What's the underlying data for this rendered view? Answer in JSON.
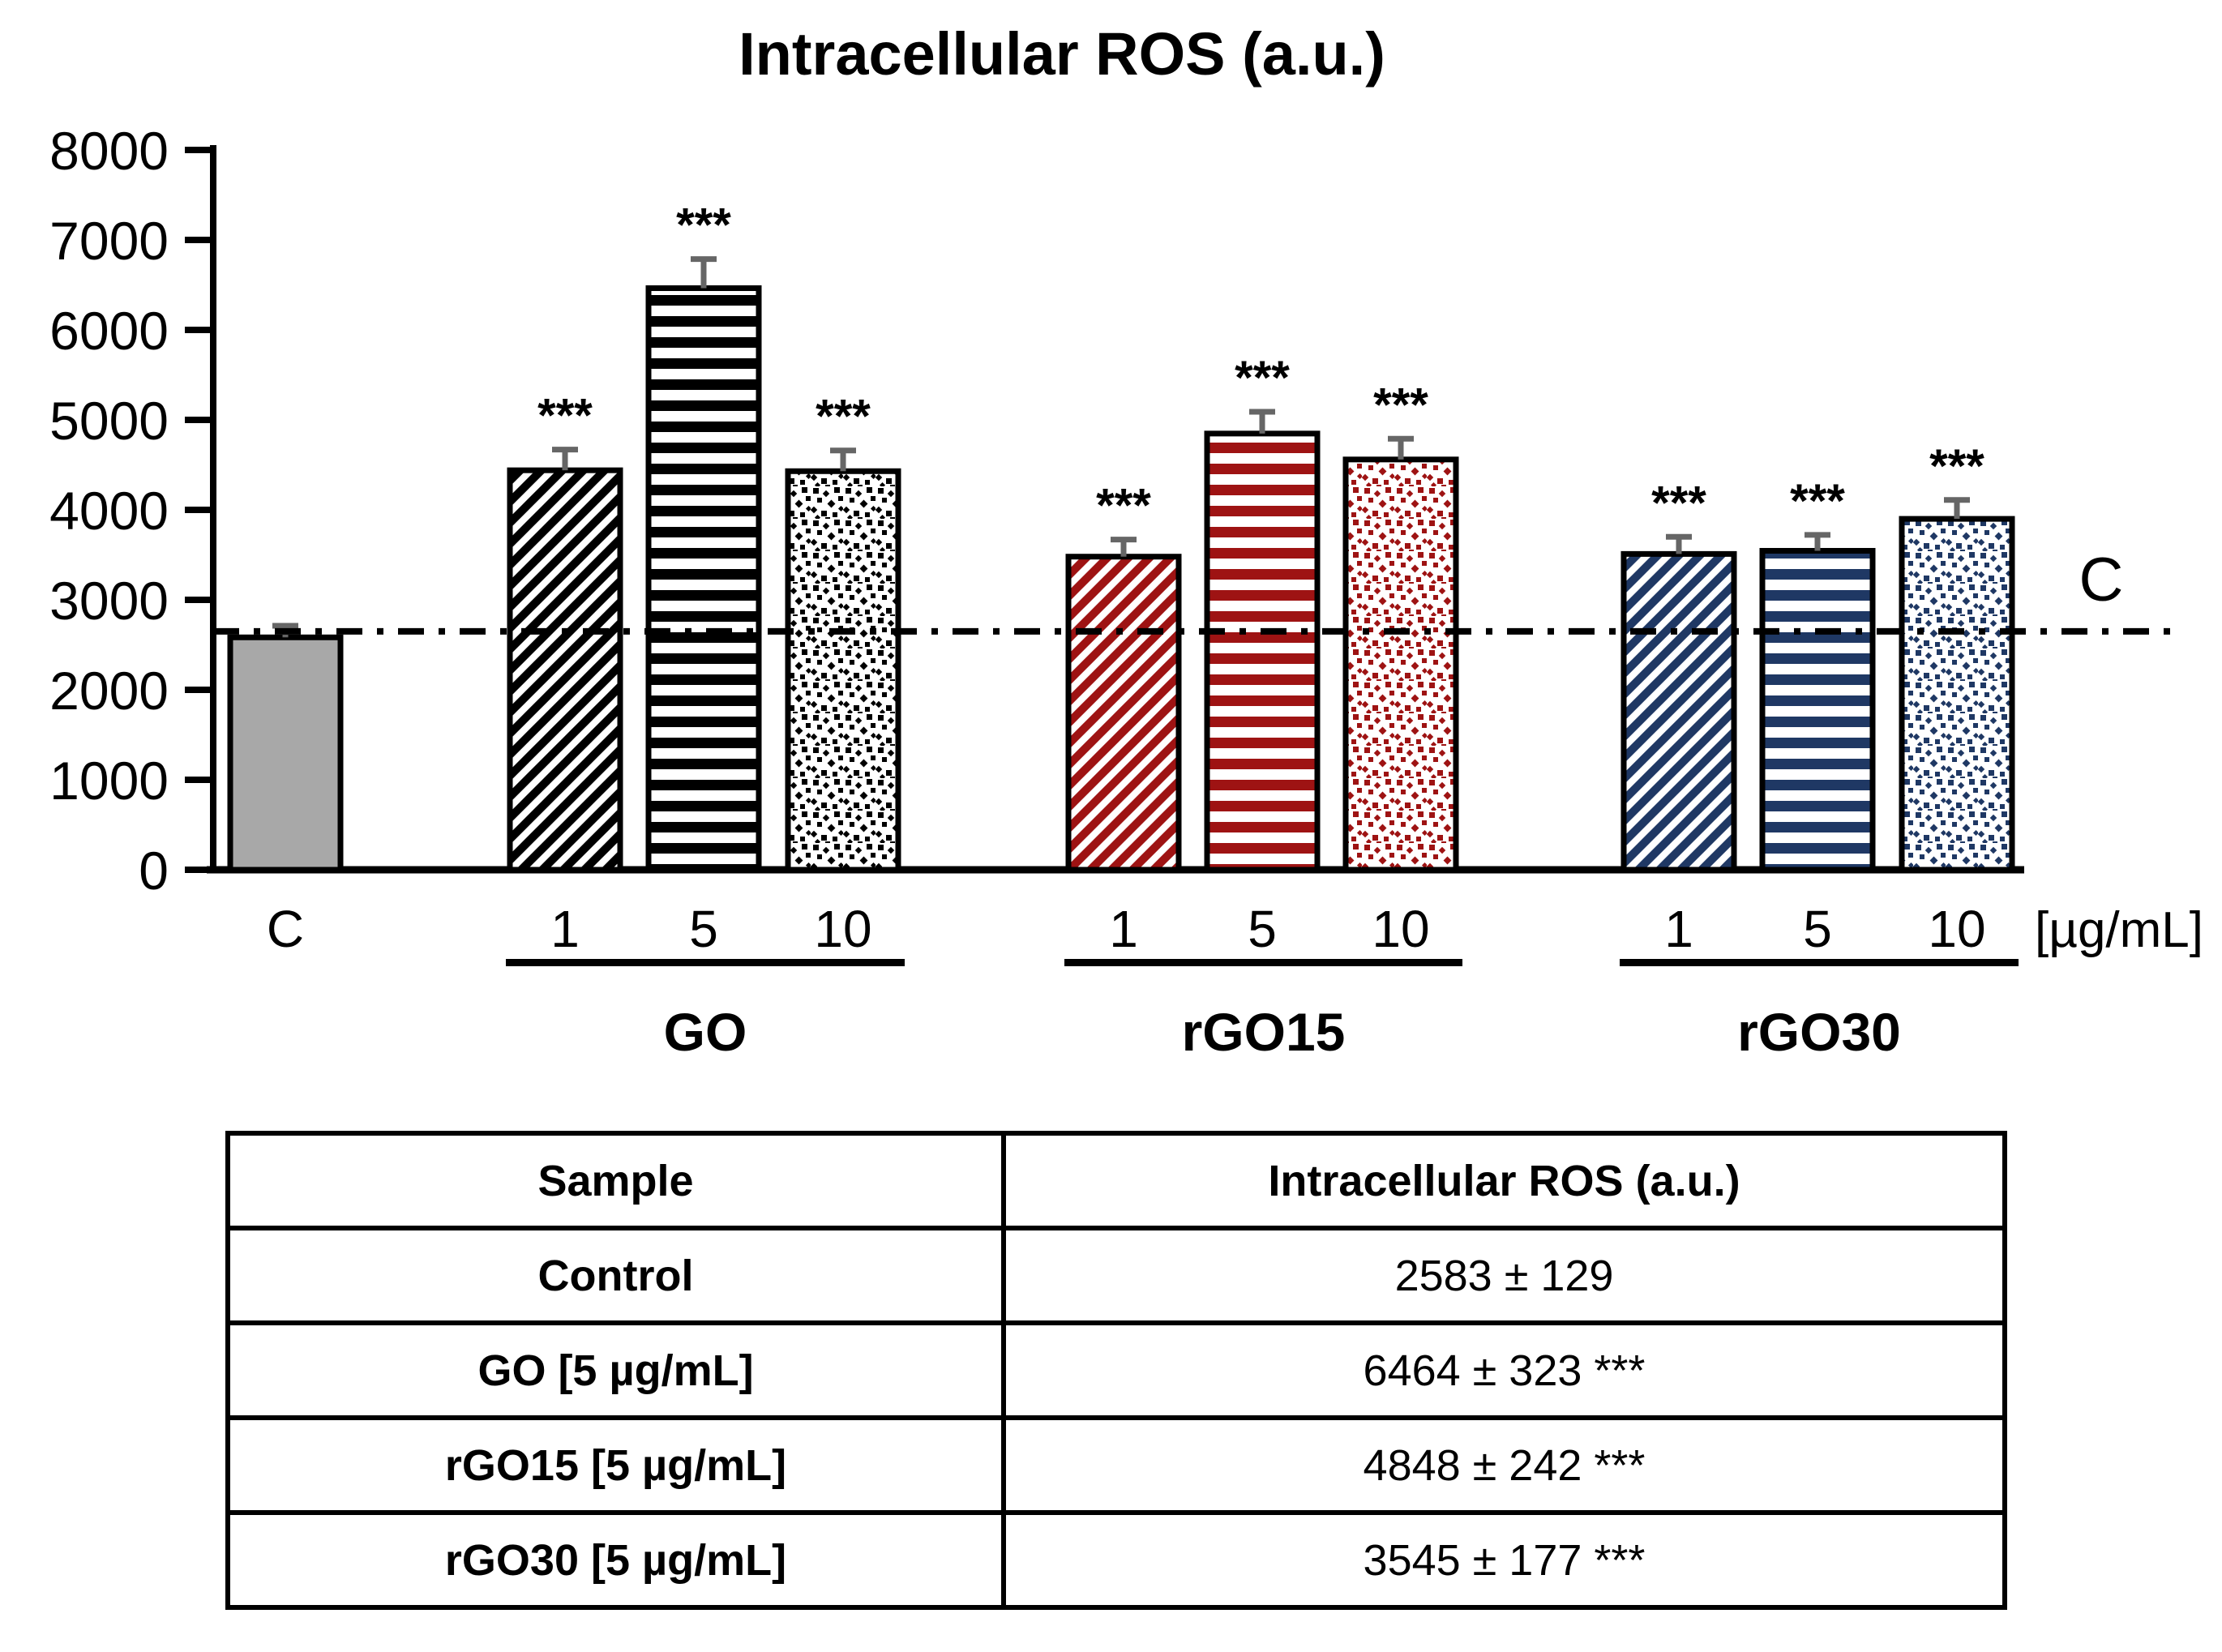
{
  "page": {
    "background": "#ffffff"
  },
  "chart_data": {
    "type": "bar",
    "title": "Intracellular ROS (a.u.)",
    "xlabel": "",
    "ylabel": "",
    "unit_label": "[µg/mL]",
    "ylim": [
      0,
      8000
    ],
    "yticks": [
      0,
      1000,
      2000,
      3000,
      4000,
      5000,
      6000,
      7000,
      8000
    ],
    "grid": false,
    "legend_position": "none",
    "reference_line": {
      "label": "C",
      "value": 2650,
      "style": "dash-dot",
      "color": "#000000"
    },
    "error_bar_color": "#666666",
    "bars": [
      {
        "group": "",
        "label": "C",
        "value": 2583,
        "error": 129,
        "sig": "",
        "color": "#a8a8a8",
        "pattern": "solid"
      },
      {
        "group": "GO",
        "label": "1",
        "value": 4440,
        "error": 230,
        "sig": "***",
        "color": "#000000",
        "pattern": "diagonal"
      },
      {
        "group": "GO",
        "label": "5",
        "value": 6464,
        "error": 323,
        "sig": "***",
        "color": "#000000",
        "pattern": "hstripes"
      },
      {
        "group": "GO",
        "label": "10",
        "value": 4430,
        "error": 230,
        "sig": "***",
        "color": "#000000",
        "pattern": "dots"
      },
      {
        "group": "rGO15",
        "label": "1",
        "value": 3480,
        "error": 190,
        "sig": "***",
        "color": "#9e1313",
        "pattern": "diagonal"
      },
      {
        "group": "rGO15",
        "label": "5",
        "value": 4848,
        "error": 242,
        "sig": "***",
        "color": "#9e1313",
        "pattern": "hstripes"
      },
      {
        "group": "rGO15",
        "label": "10",
        "value": 4560,
        "error": 230,
        "sig": "***",
        "color": "#9e1313",
        "pattern": "dots"
      },
      {
        "group": "rGO30",
        "label": "1",
        "value": 3510,
        "error": 190,
        "sig": "***",
        "color": "#1f3864",
        "pattern": "diagonal"
      },
      {
        "group": "rGO30",
        "label": "5",
        "value": 3545,
        "error": 177,
        "sig": "***",
        "color": "#1f3864",
        "pattern": "hstripes"
      },
      {
        "group": "rGO30",
        "label": "10",
        "value": 3900,
        "error": 210,
        "sig": "***",
        "color": "#1f3864",
        "pattern": "dots"
      }
    ]
  },
  "table": {
    "headers": [
      "Sample",
      "Intracellular ROS (a.u.)"
    ],
    "rows": [
      {
        "sample": "Control",
        "ros": "2583 ± 129"
      },
      {
        "sample": "GO [5 µg/mL]",
        "ros": "6464 ± 323 ***"
      },
      {
        "sample": "rGO15 [5 µg/mL]",
        "ros": "4848 ± 242 ***"
      },
      {
        "sample": "rGO30 [5 µg/mL]",
        "ros": "3545 ± 177 ***"
      }
    ]
  }
}
